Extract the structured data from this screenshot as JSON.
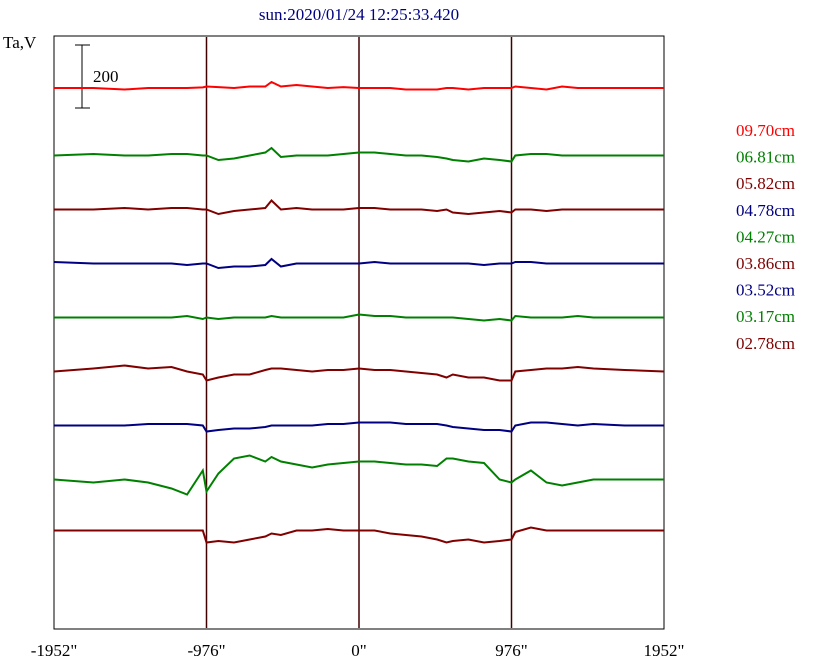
{
  "chart_data": {
    "type": "line",
    "title": "sun:2020/01/24 12:25:33.420",
    "ylabel": "Ta,V",
    "scale_bar_label": "200",
    "x_ticks": [
      "-1952\"",
      "-976\"",
      "0\"",
      "976\"",
      "1952\""
    ],
    "x_tick_values": [
      -1952,
      -976,
      0,
      976,
      1952
    ],
    "xlim": [
      -1952,
      1952
    ],
    "vertical_lines": [
      -976,
      0,
      976
    ],
    "x": [
      -1952,
      -1700,
      -1500,
      -1350,
      -1200,
      -1100,
      -1000,
      -976,
      -900,
      -800,
      -700,
      -600,
      -560,
      -500,
      -400,
      -300,
      -200,
      -100,
      0,
      100,
      200,
      300,
      400,
      500,
      560,
      600,
      700,
      800,
      900,
      976,
      1000,
      1100,
      1200,
      1300,
      1400,
      1500,
      1700,
      1952
    ],
    "series": [
      {
        "name": "09.70cm",
        "color": "#ff0000",
        "offset": 0,
        "values": [
          0,
          0,
          -5,
          0,
          0,
          0,
          2,
          5,
          3,
          0,
          5,
          5,
          20,
          5,
          10,
          5,
          0,
          3,
          0,
          0,
          0,
          -5,
          -5,
          -5,
          0,
          0,
          -5,
          0,
          0,
          0,
          5,
          0,
          -5,
          5,
          0,
          0,
          0,
          0
        ]
      },
      {
        "name": "06.81cm",
        "color": "#008000",
        "offset": -225,
        "values": [
          0,
          5,
          0,
          0,
          5,
          5,
          0,
          0,
          -15,
          -10,
          0,
          10,
          25,
          -5,
          0,
          0,
          0,
          5,
          10,
          10,
          5,
          0,
          0,
          -5,
          -10,
          -15,
          -20,
          -10,
          -15,
          -20,
          0,
          5,
          5,
          0,
          0,
          0,
          0,
          0
        ]
      },
      {
        "name": "05.82cm",
        "color": "#800000",
        "offset": -405,
        "values": [
          0,
          0,
          5,
          0,
          5,
          5,
          0,
          0,
          -15,
          -5,
          0,
          5,
          30,
          0,
          5,
          0,
          0,
          0,
          5,
          5,
          0,
          0,
          0,
          -5,
          0,
          -10,
          -15,
          -10,
          -5,
          -10,
          0,
          0,
          -5,
          0,
          0,
          0,
          0,
          0
        ]
      },
      {
        "name": "04.78cm",
        "color": "#000080",
        "offset": -585,
        "values": [
          5,
          0,
          0,
          0,
          0,
          -5,
          0,
          0,
          -15,
          -10,
          -10,
          -5,
          15,
          -10,
          0,
          0,
          0,
          0,
          0,
          5,
          0,
          0,
          0,
          0,
          0,
          0,
          0,
          -5,
          0,
          0,
          5,
          5,
          0,
          0,
          0,
          0,
          0,
          0
        ]
      },
      {
        "name": "04.27cm",
        "color": "#008000",
        "offset": -765,
        "values": [
          0,
          0,
          0,
          0,
          0,
          5,
          -5,
          0,
          -5,
          0,
          0,
          0,
          5,
          0,
          0,
          0,
          0,
          0,
          10,
          5,
          5,
          0,
          0,
          0,
          0,
          0,
          -5,
          -10,
          -5,
          -10,
          5,
          0,
          0,
          0,
          5,
          0,
          0,
          0
        ]
      },
      {
        "name": "03.86cm",
        "color": "#800000",
        "offset": -945,
        "values": [
          0,
          10,
          20,
          10,
          15,
          0,
          -10,
          -30,
          -20,
          -10,
          -10,
          5,
          10,
          10,
          5,
          0,
          5,
          5,
          10,
          5,
          5,
          0,
          -5,
          -10,
          -20,
          -10,
          -20,
          -20,
          -30,
          -30,
          0,
          5,
          10,
          10,
          15,
          10,
          5,
          0
        ]
      },
      {
        "name": "03.52cm",
        "color": "#000080",
        "offset": -1125,
        "values": [
          0,
          0,
          0,
          5,
          5,
          5,
          0,
          -20,
          -15,
          -10,
          -10,
          -5,
          0,
          0,
          0,
          0,
          5,
          5,
          10,
          10,
          10,
          5,
          5,
          5,
          0,
          -5,
          -10,
          -15,
          -15,
          -20,
          0,
          10,
          10,
          5,
          0,
          5,
          0,
          0
        ]
      },
      {
        "name": "03.17cm",
        "color": "#008000",
        "offset": -1305,
        "values": [
          0,
          -10,
          0,
          -10,
          -30,
          -50,
          30,
          -40,
          20,
          70,
          80,
          60,
          75,
          60,
          50,
          40,
          50,
          55,
          60,
          60,
          55,
          50,
          50,
          45,
          70,
          70,
          60,
          55,
          0,
          -10,
          0,
          30,
          -10,
          -20,
          -10,
          0,
          0,
          0
        ]
      },
      {
        "name": "02.78cm",
        "color": "#800000",
        "offset": -1475,
        "values": [
          0,
          0,
          0,
          0,
          0,
          0,
          0,
          -40,
          -35,
          -40,
          -30,
          -20,
          -10,
          -15,
          0,
          0,
          5,
          0,
          0,
          0,
          -10,
          -15,
          -20,
          -30,
          -40,
          -35,
          -30,
          -40,
          -35,
          -30,
          -5,
          10,
          0,
          0,
          0,
          0,
          0,
          0
        ]
      }
    ],
    "grid": false,
    "legend_position": "right"
  }
}
